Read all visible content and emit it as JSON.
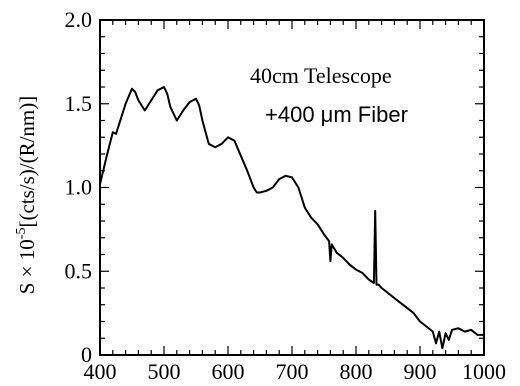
{
  "chart_data": {
    "type": "line",
    "title": "",
    "xlabel": "",
    "ylabel": {
      "prefix": "S × 10",
      "exponent": "-5",
      "suffix": "[(cts/s)/(R/nm)]"
    },
    "xlim": [
      400,
      1000
    ],
    "ylim": [
      0,
      2.0
    ],
    "x_ticks": [
      400,
      500,
      600,
      700,
      800,
      900,
      1000
    ],
    "x_tick_labels": [
      "400",
      "500",
      "600",
      "700",
      "800",
      "900",
      "1000"
    ],
    "y_ticks": [
      0,
      0.5,
      1.0,
      1.5,
      2.0
    ],
    "y_tick_labels": [
      "0",
      "0.5",
      "1.0",
      "1.5",
      "2.0"
    ],
    "annotations": [
      "40cm Telescope",
      "+400 μm Fiber"
    ],
    "grid": false,
    "series": [
      {
        "color": "#000000",
        "x": [
          400,
          410,
          420,
          425,
          430,
          440,
          450,
          455,
          460,
          470,
          480,
          490,
          500,
          505,
          510,
          520,
          530,
          540,
          550,
          555,
          560,
          570,
          580,
          590,
          600,
          610,
          620,
          630,
          640,
          645,
          650,
          660,
          670,
          680,
          690,
          700,
          710,
          720,
          730,
          740,
          750,
          758,
          760,
          762,
          770,
          780,
          790,
          800,
          810,
          820,
          828,
          830,
          832,
          835,
          840,
          850,
          860,
          870,
          880,
          890,
          900,
          910,
          920,
          925,
          930,
          935,
          940,
          945,
          950,
          960,
          970,
          980,
          990,
          1000
        ],
        "y": [
          1.02,
          1.18,
          1.33,
          1.32,
          1.38,
          1.5,
          1.59,
          1.57,
          1.52,
          1.46,
          1.52,
          1.58,
          1.6,
          1.56,
          1.48,
          1.4,
          1.46,
          1.51,
          1.53,
          1.49,
          1.4,
          1.26,
          1.24,
          1.26,
          1.3,
          1.28,
          1.19,
          1.1,
          1.0,
          0.97,
          0.97,
          0.98,
          1.0,
          1.05,
          1.07,
          1.06,
          1.0,
          0.88,
          0.82,
          0.78,
          0.72,
          0.68,
          0.56,
          0.66,
          0.61,
          0.58,
          0.54,
          0.51,
          0.49,
          0.45,
          0.43,
          0.86,
          0.42,
          0.42,
          0.4,
          0.37,
          0.34,
          0.31,
          0.28,
          0.25,
          0.2,
          0.17,
          0.14,
          0.07,
          0.14,
          0.04,
          0.13,
          0.09,
          0.15,
          0.16,
          0.14,
          0.15,
          0.12,
          0.12
        ]
      }
    ]
  }
}
